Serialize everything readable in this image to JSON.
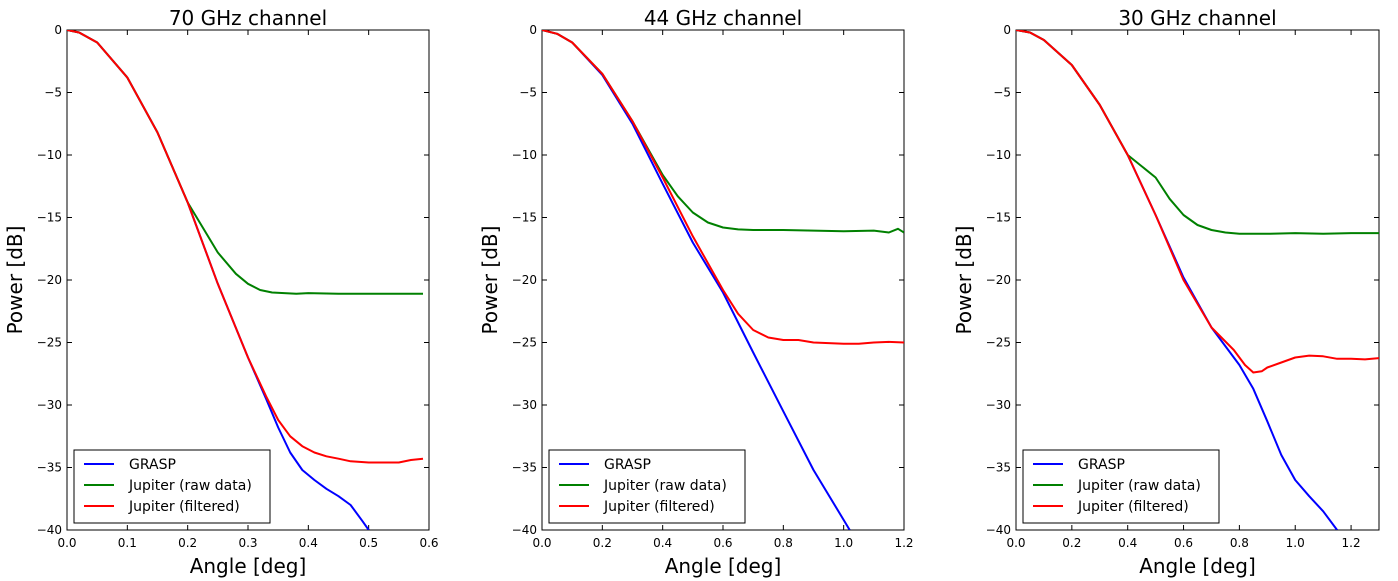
{
  "chart_data": [
    {
      "type": "line",
      "title": "70 GHz channel",
      "xlabel": "Angle [deg]",
      "ylabel": "Power [dB]",
      "xlim": [
        0.0,
        0.6
      ],
      "ylim": [
        -40,
        0
      ],
      "xticks": [
        0.0,
        0.1,
        0.2,
        0.3,
        0.4,
        0.5,
        0.6
      ],
      "xtick_labels": [
        "0.0",
        "0.1",
        "0.2",
        "0.3",
        "0.4",
        "0.5",
        "0.6"
      ],
      "yticks": [
        0,
        -5,
        -10,
        -15,
        -20,
        -25,
        -30,
        -35,
        -40
      ],
      "ytick_labels": [
        "0",
        "−5",
        "−10",
        "−15",
        "−20",
        "−25",
        "−30",
        "−35",
        "−40"
      ],
      "grid": false,
      "legend_position": "lower-left",
      "series": [
        {
          "name": "GRASP",
          "color": "#0000ff",
          "x": [
            0,
            0.02,
            0.05,
            0.1,
            0.15,
            0.2,
            0.25,
            0.3,
            0.33,
            0.35,
            0.37,
            0.39,
            0.41,
            0.43,
            0.45,
            0.47,
            0.49,
            0.5
          ],
          "y": [
            0,
            -0.2,
            -1.0,
            -3.8,
            -8.2,
            -13.8,
            -20.3,
            -26.2,
            -29.5,
            -31.8,
            -33.8,
            -35.2,
            -36.0,
            -36.7,
            -37.3,
            -38.0,
            -39.3,
            -40.0
          ]
        },
        {
          "name": "Jupiter (raw data)",
          "color": "#008000",
          "x": [
            0,
            0.02,
            0.05,
            0.1,
            0.15,
            0.2,
            0.25,
            0.28,
            0.3,
            0.32,
            0.34,
            0.36,
            0.38,
            0.4,
            0.45,
            0.5,
            0.55,
            0.59
          ],
          "y": [
            0,
            -0.2,
            -1.0,
            -3.8,
            -8.2,
            -13.8,
            -17.8,
            -19.5,
            -20.3,
            -20.8,
            -21.0,
            -21.05,
            -21.1,
            -21.05,
            -21.1,
            -21.1,
            -21.1,
            -21.1
          ]
        },
        {
          "name": "Jupiter (filtered)",
          "color": "#ff0000",
          "x": [
            0,
            0.02,
            0.05,
            0.1,
            0.15,
            0.2,
            0.25,
            0.3,
            0.33,
            0.35,
            0.37,
            0.39,
            0.41,
            0.43,
            0.45,
            0.47,
            0.5,
            0.53,
            0.55,
            0.57,
            0.59
          ],
          "y": [
            0,
            -0.2,
            -1.0,
            -3.8,
            -8.2,
            -13.8,
            -20.3,
            -26.2,
            -29.3,
            -31.2,
            -32.5,
            -33.3,
            -33.8,
            -34.1,
            -34.3,
            -34.5,
            -34.6,
            -34.6,
            -34.6,
            -34.4,
            -34.3
          ]
        }
      ]
    },
    {
      "type": "line",
      "title": "44 GHz channel",
      "xlabel": "Angle [deg]",
      "ylabel": "Power [dB]",
      "xlim": [
        0.0,
        1.2
      ],
      "ylim": [
        -40,
        0
      ],
      "xticks": [
        0.0,
        0.2,
        0.4,
        0.6,
        0.8,
        1.0,
        1.2
      ],
      "xtick_labels": [
        "0.0",
        "0.2",
        "0.4",
        "0.6",
        "0.8",
        "1.0",
        "1.2"
      ],
      "yticks": [
        0,
        -5,
        -10,
        -15,
        -20,
        -25,
        -30,
        -35,
        -40
      ],
      "ytick_labels": [
        "0",
        "−5",
        "−10",
        "−15",
        "−20",
        "−25",
        "−30",
        "−35",
        "−40"
      ],
      "grid": false,
      "legend_position": "lower-left",
      "series": [
        {
          "name": "GRASP",
          "color": "#0000ff",
          "x": [
            0,
            0.05,
            0.1,
            0.2,
            0.3,
            0.4,
            0.5,
            0.6,
            0.7,
            0.8,
            0.9,
            1.0,
            1.02
          ],
          "y": [
            0,
            -0.3,
            -1.0,
            -3.6,
            -7.5,
            -12.3,
            -17.0,
            -21.0,
            -25.8,
            -30.5,
            -35.2,
            -39.2,
            -40.0
          ]
        },
        {
          "name": "Jupiter (raw data)",
          "color": "#008000",
          "x": [
            0,
            0.05,
            0.1,
            0.2,
            0.3,
            0.4,
            0.45,
            0.5,
            0.55,
            0.6,
            0.65,
            0.7,
            0.8,
            0.9,
            1.0,
            1.1,
            1.15,
            1.18,
            1.2
          ],
          "y": [
            0,
            -0.3,
            -1.0,
            -3.5,
            -7.3,
            -11.6,
            -13.3,
            -14.6,
            -15.4,
            -15.8,
            -15.95,
            -16.0,
            -16.0,
            -16.05,
            -16.1,
            -16.05,
            -16.2,
            -15.9,
            -16.2
          ]
        },
        {
          "name": "Jupiter (filtered)",
          "color": "#ff0000",
          "x": [
            0,
            0.05,
            0.1,
            0.2,
            0.3,
            0.4,
            0.5,
            0.6,
            0.65,
            0.7,
            0.75,
            0.8,
            0.85,
            0.9,
            0.95,
            1.0,
            1.05,
            1.1,
            1.15,
            1.2
          ],
          "y": [
            0,
            -0.3,
            -1.0,
            -3.5,
            -7.3,
            -11.8,
            -16.5,
            -20.8,
            -22.7,
            -24.0,
            -24.6,
            -24.8,
            -24.8,
            -25.0,
            -25.05,
            -25.1,
            -25.1,
            -25.0,
            -24.95,
            -25.0
          ]
        }
      ]
    },
    {
      "type": "line",
      "title": "30 GHz channel",
      "xlabel": "Angle [deg]",
      "ylabel": "Power [dB]",
      "xlim": [
        0.0,
        1.3
      ],
      "ylim": [
        -40,
        0
      ],
      "xticks": [
        0.0,
        0.2,
        0.4,
        0.6,
        0.8,
        1.0,
        1.2
      ],
      "xtick_labels": [
        "0.0",
        "0.2",
        "0.4",
        "0.6",
        "0.8",
        "1.0",
        "1.2"
      ],
      "yticks": [
        0,
        -5,
        -10,
        -15,
        -20,
        -25,
        -30,
        -35,
        -40
      ],
      "ytick_labels": [
        "0",
        "−5",
        "−10",
        "−15",
        "−20",
        "−25",
        "−30",
        "−35",
        "−40"
      ],
      "grid": false,
      "legend_position": "lower-left",
      "series": [
        {
          "name": "GRASP",
          "color": "#0000ff",
          "x": [
            0,
            0.05,
            0.1,
            0.2,
            0.3,
            0.4,
            0.5,
            0.6,
            0.7,
            0.8,
            0.85,
            0.9,
            0.95,
            1.0,
            1.05,
            1.1,
            1.15
          ],
          "y": [
            0,
            -0.2,
            -0.8,
            -2.8,
            -6.0,
            -10.0,
            -14.8,
            -19.8,
            -23.8,
            -26.8,
            -28.7,
            -31.3,
            -34.0,
            -36.0,
            -37.3,
            -38.5,
            -40.0
          ]
        },
        {
          "name": "Jupiter (raw data)",
          "color": "#008000",
          "x": [
            0,
            0.05,
            0.1,
            0.2,
            0.3,
            0.4,
            0.5,
            0.55,
            0.6,
            0.65,
            0.7,
            0.75,
            0.8,
            0.9,
            1.0,
            1.1,
            1.2,
            1.3
          ],
          "y": [
            0,
            -0.2,
            -0.8,
            -2.8,
            -6.0,
            -10.0,
            -11.8,
            -13.5,
            -14.8,
            -15.6,
            -16.0,
            -16.2,
            -16.3,
            -16.3,
            -16.25,
            -16.3,
            -16.25,
            -16.25
          ]
        },
        {
          "name": "Jupiter (filtered)",
          "color": "#ff0000",
          "x": [
            0,
            0.05,
            0.1,
            0.2,
            0.3,
            0.4,
            0.5,
            0.6,
            0.7,
            0.78,
            0.82,
            0.85,
            0.88,
            0.9,
            0.95,
            1.0,
            1.05,
            1.1,
            1.15,
            1.2,
            1.25,
            1.3
          ],
          "y": [
            0,
            -0.2,
            -0.8,
            -2.8,
            -6.0,
            -10.0,
            -14.8,
            -20.0,
            -23.8,
            -25.6,
            -26.8,
            -27.4,
            -27.3,
            -27.0,
            -26.6,
            -26.2,
            -26.05,
            -26.1,
            -26.3,
            -26.3,
            -26.35,
            -26.25
          ]
        }
      ]
    }
  ]
}
